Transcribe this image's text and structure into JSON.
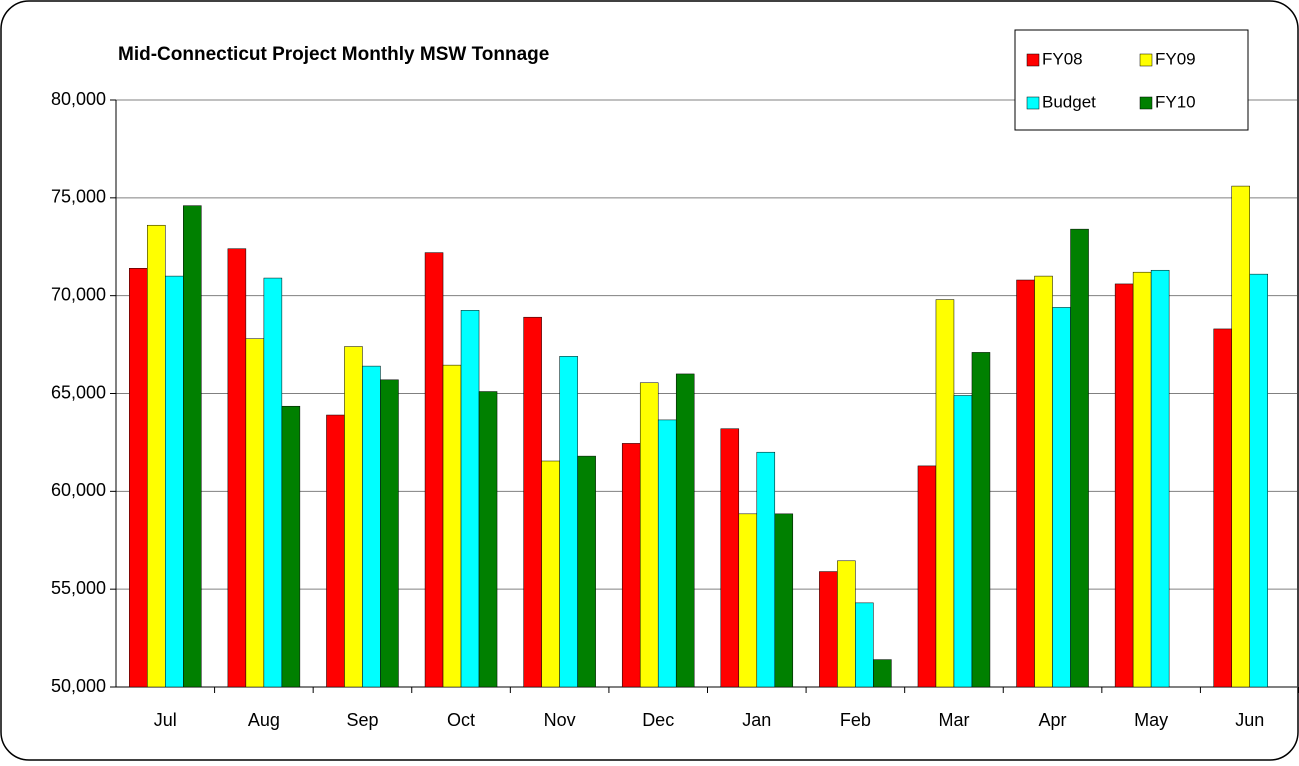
{
  "chart_data": {
    "type": "bar",
    "title": "Mid-Connecticut Project Monthly MSW Tonnage",
    "categories": [
      "Jul",
      "Aug",
      "Sep",
      "Oct",
      "Nov",
      "Dec",
      "Jan",
      "Feb",
      "Mar",
      "Apr",
      "May",
      "Jun"
    ],
    "series": [
      {
        "name": "FY08",
        "color": "#ff0000",
        "values": [
          71400,
          72400,
          63900,
          72200,
          68900,
          62450,
          63200,
          55900,
          61300,
          70800,
          70600,
          68300
        ]
      },
      {
        "name": "FY09",
        "color": "#ffff00",
        "values": [
          73600,
          67800,
          67400,
          66450,
          61550,
          65550,
          58850,
          56450,
          69800,
          71000,
          71200,
          75600
        ]
      },
      {
        "name": "Budget",
        "color": "#00ffff",
        "values": [
          71000,
          70900,
          66400,
          69250,
          66900,
          63650,
          62000,
          54300,
          64900,
          69400,
          71300,
          71100
        ]
      },
      {
        "name": "FY10",
        "color": "#008000",
        "values": [
          74600,
          64350,
          65700,
          65100,
          61800,
          66000,
          58850,
          51400,
          67100,
          73400,
          null,
          null
        ]
      }
    ],
    "ylim": [
      50000,
      80000
    ],
    "yticks": [
      {
        "value": 50000,
        "label": "50,000"
      },
      {
        "value": 55000,
        "label": "55,000"
      },
      {
        "value": 60000,
        "label": "60,000"
      },
      {
        "value": 65000,
        "label": "65,000"
      },
      {
        "value": 70000,
        "label": "70,000"
      },
      {
        "value": 75000,
        "label": "75,000"
      },
      {
        "value": 80000,
        "label": "80,000"
      }
    ],
    "grid": true,
    "legend": "top-right"
  }
}
